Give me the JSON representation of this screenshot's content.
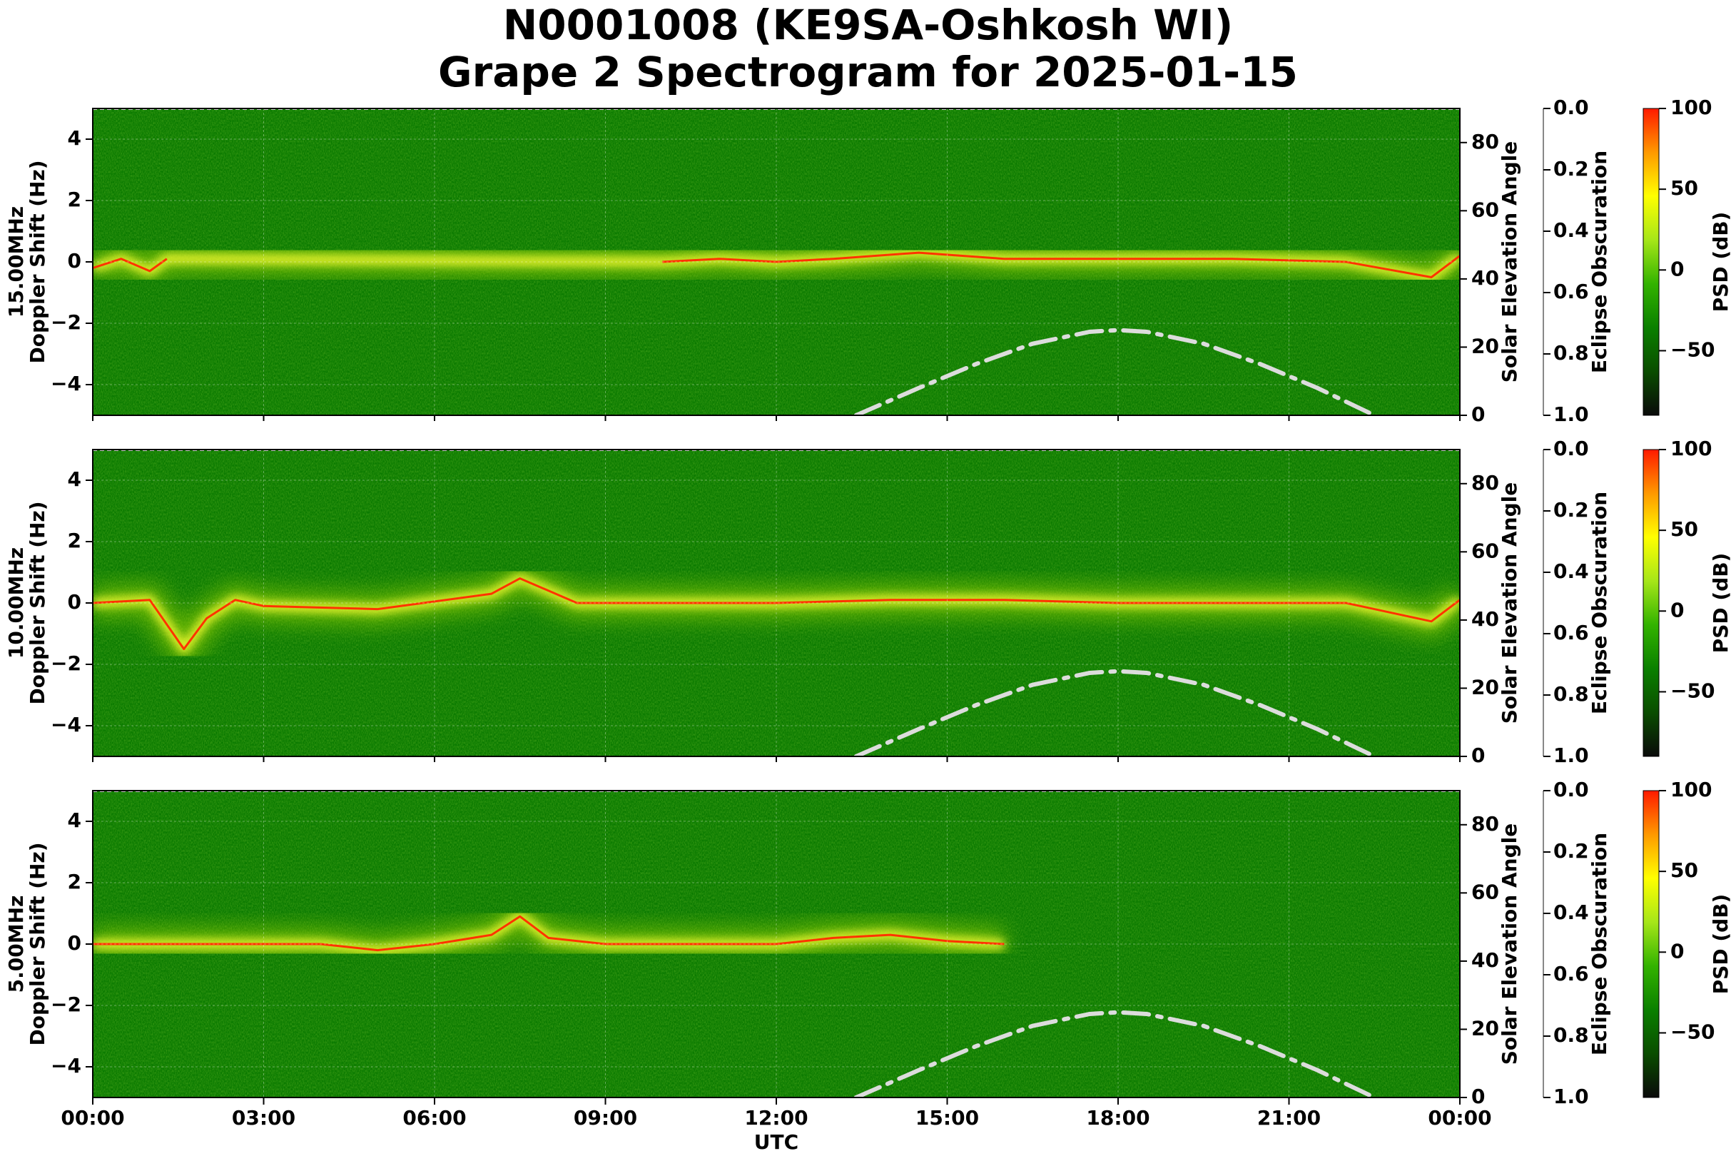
{
  "figure": {
    "title_line1": "N0001008 (KE9SA-Oshkosh WI)",
    "title_line2": "Grape 2 Spectrogram for 2025-01-15"
  },
  "colors": {
    "background_green": "#0a7a00",
    "colormap": [
      "#0a0a0a",
      "#0a4d00",
      "#0a8000",
      "#33b300",
      "#a6e619",
      "#ffff00",
      "#ff9900",
      "#ff1a00"
    ],
    "solar_curve": "#dcdcdc"
  },
  "chart_data": [
    {
      "type": "heatmap",
      "panel": "15.00MHz",
      "ylabel_freq": "15.00MHz",
      "ylabel": "Doppler Shift (Hz)",
      "xlabel": "",
      "xlim": [
        "00:00",
        "24:00"
      ],
      "ylim": [
        -5,
        5
      ],
      "yticks": [
        4,
        2,
        0,
        -2,
        -4
      ],
      "right_axis": {
        "label": "Solar Elevation Angle",
        "ylim": [
          0,
          90
        ],
        "ticks": [
          0,
          20,
          40,
          60,
          80
        ]
      },
      "eclipse_axis": {
        "label": "Eclipse Obscuration",
        "ylim": [
          1.0,
          0.0
        ],
        "ticks": [
          "0.0",
          "0.2",
          "0.4",
          "0.6",
          "0.8",
          "1.0"
        ]
      },
      "colorbar": {
        "label": "PSD (dB)",
        "ticks": [
          "100",
          "50",
          "0",
          "−50"
        ],
        "range": [
          -90,
          100
        ]
      },
      "solar_elevation": {
        "hours": [
          13.4,
          14.5,
          15.5,
          16.5,
          17.5,
          18.0,
          18.5,
          19.5,
          20.5,
          21.5,
          22.5
        ],
        "deg": [
          0,
          8,
          15,
          21,
          24.5,
          25,
          24.5,
          21,
          15,
          8,
          0
        ]
      },
      "signal_track": {
        "hours": [
          0,
          0.5,
          1,
          1.3,
          10,
          11,
          12,
          13,
          14.5,
          16,
          18,
          20,
          22,
          23.5,
          24
        ],
        "hz": [
          -0.2,
          0.1,
          -0.3,
          0.1,
          0,
          0.1,
          0,
          0.1,
          0.3,
          0.1,
          0.1,
          0.1,
          0.0,
          -0.5,
          0.2
        ]
      }
    },
    {
      "type": "heatmap",
      "panel": "10.00MHz",
      "ylabel_freq": "10.00MHz",
      "ylabel": "Doppler Shift (Hz)",
      "xlabel": "",
      "xlim": [
        "00:00",
        "24:00"
      ],
      "ylim": [
        -5,
        5
      ],
      "yticks": [
        4,
        2,
        0,
        -2,
        -4
      ],
      "right_axis": {
        "label": "Solar Elevation Angle",
        "ylim": [
          0,
          90
        ],
        "ticks": [
          0,
          20,
          40,
          60,
          80
        ]
      },
      "eclipse_axis": {
        "label": "Eclipse Obscuration",
        "ylim": [
          1.0,
          0.0
        ],
        "ticks": [
          "0.0",
          "0.2",
          "0.4",
          "0.6",
          "0.8",
          "1.0"
        ]
      },
      "colorbar": {
        "label": "PSD (dB)",
        "ticks": [
          "100",
          "50",
          "0",
          "−50"
        ],
        "range": [
          -90,
          100
        ]
      },
      "solar_elevation": {
        "hours": [
          13.4,
          14.5,
          15.5,
          16.5,
          17.5,
          18.0,
          18.5,
          19.5,
          20.5,
          21.5,
          22.5
        ],
        "deg": [
          0,
          8,
          15,
          21,
          24.5,
          25,
          24.5,
          21,
          15,
          8,
          0
        ]
      },
      "signal_track": {
        "hours": [
          0,
          1,
          1.6,
          2,
          2.5,
          3,
          5,
          7,
          7.5,
          8.5,
          10,
          12,
          14,
          16,
          18,
          20,
          22,
          23.5,
          24
        ],
        "hz": [
          0,
          0.1,
          -1.5,
          -0.5,
          0.1,
          -0.1,
          -0.2,
          0.3,
          0.8,
          0,
          0,
          0,
          0.1,
          0.1,
          0,
          0,
          0,
          -0.6,
          0.1
        ]
      }
    },
    {
      "type": "heatmap",
      "panel": "5.00MHz",
      "ylabel_freq": "5.00MHz",
      "ylabel": "Doppler Shift (Hz)",
      "xlabel": "UTC",
      "xlim": [
        "00:00",
        "24:00"
      ],
      "ylim": [
        -5,
        5
      ],
      "yticks": [
        4,
        2,
        0,
        -2,
        -4
      ],
      "xticks": [
        "00:00",
        "03:00",
        "06:00",
        "09:00",
        "12:00",
        "15:00",
        "18:00",
        "21:00",
        "00:00"
      ],
      "right_axis": {
        "label": "Solar Elevation Angle",
        "ylim": [
          0,
          90
        ],
        "ticks": [
          0,
          20,
          40,
          60,
          80
        ]
      },
      "eclipse_axis": {
        "label": "Eclipse Obscuration",
        "ylim": [
          1.0,
          0.0
        ],
        "ticks": [
          "0.0",
          "0.2",
          "0.4",
          "0.6",
          "0.8",
          "1.0"
        ]
      },
      "colorbar": {
        "label": "PSD (dB)",
        "ticks": [
          "100",
          "50",
          "0",
          "−50"
        ],
        "range": [
          -90,
          100
        ]
      },
      "solar_elevation": {
        "hours": [
          13.4,
          14.5,
          15.5,
          16.5,
          17.5,
          18.0,
          18.5,
          19.5,
          20.5,
          21.5,
          22.5
        ],
        "deg": [
          0,
          8,
          15,
          21,
          24.5,
          25,
          24.5,
          21,
          15,
          8,
          0
        ]
      },
      "signal_track": {
        "hours": [
          0,
          2,
          4,
          5,
          6,
          7,
          7.5,
          8,
          9,
          11,
          12,
          13,
          14,
          15,
          16
        ],
        "hz": [
          0,
          0,
          0,
          -0.2,
          0,
          0.3,
          0.9,
          0.2,
          0,
          0,
          0,
          0.2,
          0.3,
          0.1,
          0
        ]
      }
    }
  ]
}
